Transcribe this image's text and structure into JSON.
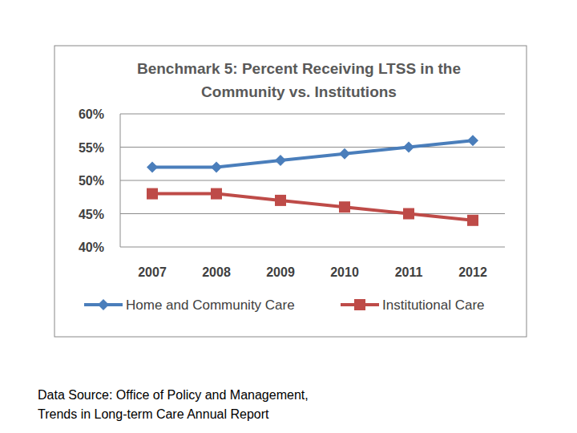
{
  "chart_data": {
    "type": "line",
    "title": "Benchmark 5: Percent Receiving LTSS in the Community vs. Institutions",
    "categories": [
      "2007",
      "2008",
      "2009",
      "2010",
      "2011",
      "2012"
    ],
    "series": [
      {
        "name": "Home and Community Care",
        "color": "#4a7ebb",
        "marker": "diamond",
        "values": [
          52,
          52,
          53,
          54,
          55,
          56
        ]
      },
      {
        "name": "Institutional Care",
        "color": "#be4b48",
        "marker": "square",
        "values": [
          48,
          48,
          47,
          46,
          45,
          44
        ]
      }
    ],
    "ylim": [
      40,
      60
    ],
    "yticks": [
      {
        "value": 40,
        "label": "40%"
      },
      {
        "value": 45,
        "label": "45%"
      },
      {
        "value": 50,
        "label": "50%"
      },
      {
        "value": 55,
        "label": "55%"
      },
      {
        "value": 60,
        "label": "60%"
      }
    ],
    "grid": true,
    "legend": "bottom",
    "source": [
      "Data Source: Office of Policy and Management,",
      "Trends in Long-term Care Annual Report"
    ]
  }
}
